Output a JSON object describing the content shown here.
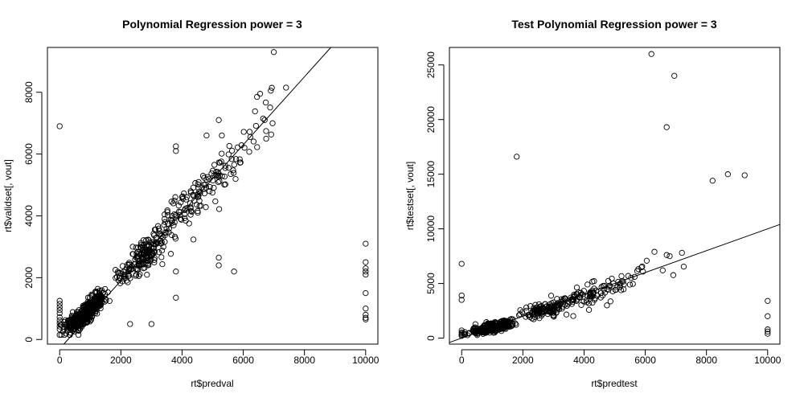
{
  "chart_data": [
    {
      "type": "scatter",
      "title": "Polynomial Regression power = 3",
      "xlabel": "rt$predval",
      "ylabel": "rt$validset[, vout]",
      "xlim": [
        -400,
        10400
      ],
      "ylim": [
        -150,
        9450
      ],
      "xticks": [
        0,
        2000,
        4000,
        6000,
        8000,
        10000
      ],
      "yticks": [
        0,
        2000,
        4000,
        6000,
        8000
      ],
      "grid": false,
      "fit_line": {
        "intercept": -300,
        "slope": 1.1
      },
      "clusters": [
        {
          "cx": 800,
          "cy": 800,
          "sx": 300,
          "sy": 280,
          "n": 260,
          "corr": 0.75
        },
        {
          "cx": 1200,
          "cy": 1250,
          "sx": 180,
          "sy": 220,
          "n": 80,
          "corr": 0.6
        },
        {
          "cx": 450,
          "cy": 500,
          "sx": 180,
          "sy": 170,
          "n": 60,
          "corr": 0.4
        },
        {
          "cx": 2850,
          "cy": 2750,
          "sx": 280,
          "sy": 260,
          "n": 130,
          "corr": 0.4
        },
        {
          "cx": 2150,
          "cy": 2100,
          "sx": 180,
          "sy": 150,
          "n": 35,
          "corr": 0.3
        },
        {
          "cx": 3700,
          "cy": 3900,
          "sx": 400,
          "sy": 450,
          "n": 60,
          "corr": 0.7
        },
        {
          "cx": 4600,
          "cy": 4700,
          "sx": 450,
          "sy": 500,
          "n": 70,
          "corr": 0.75
        },
        {
          "cx": 5500,
          "cy": 5600,
          "sx": 500,
          "sy": 550,
          "n": 25,
          "corr": 0.7
        },
        {
          "cx": 6600,
          "cy": 7000,
          "sx": 450,
          "sy": 550,
          "n": 14,
          "corr": 0.7
        }
      ],
      "points": [
        [
          0,
          6900
        ],
        [
          0,
          1250
        ],
        [
          0,
          1150
        ],
        [
          0,
          1050
        ],
        [
          0,
          950
        ],
        [
          0,
          850
        ],
        [
          0,
          720
        ],
        [
          0,
          620
        ],
        [
          0,
          520
        ],
        [
          0,
          420
        ],
        [
          0,
          330
        ],
        [
          10000,
          3100
        ],
        [
          10000,
          2500
        ],
        [
          10000,
          2300
        ],
        [
          10000,
          2200
        ],
        [
          10000,
          2100
        ],
        [
          10000,
          1500
        ],
        [
          10000,
          1000
        ],
        [
          10000,
          800
        ],
        [
          10000,
          700
        ],
        [
          10000,
          650
        ],
        [
          7000,
          9300
        ],
        [
          7400,
          8150
        ],
        [
          6900,
          8050
        ],
        [
          6550,
          7950
        ],
        [
          6450,
          7850
        ],
        [
          6700,
          7100
        ],
        [
          6650,
          7150
        ],
        [
          5200,
          2650
        ],
        [
          5200,
          2400
        ],
        [
          5700,
          2200
        ],
        [
          3800,
          1350
        ],
        [
          3000,
          500
        ],
        [
          2300,
          500
        ],
        [
          3800,
          2200
        ],
        [
          4800,
          6600
        ],
        [
          3800,
          6250
        ],
        [
          3800,
          6100
        ],
        [
          5200,
          7100
        ],
        [
          5300,
          6600
        ]
      ]
    },
    {
      "type": "scatter",
      "title": "Test Polynomial Regression power = 3",
      "xlabel": "rt$predtest",
      "ylabel": "rt$testset[, vout]",
      "xlim": [
        -400,
        10400
      ],
      "ylim": [
        -550,
        26600
      ],
      "xticks": [
        0,
        2000,
        4000,
        6000,
        8000,
        10000
      ],
      "yticks": [
        0,
        5000,
        10000,
        15000,
        20000,
        25000
      ],
      "grid": false,
      "fit_line": {
        "intercept": 0,
        "slope": 1.0
      },
      "clusters": [
        {
          "cx": 900,
          "cy": 900,
          "sx": 350,
          "sy": 280,
          "n": 220,
          "corr": 0.7
        },
        {
          "cx": 1300,
          "cy": 1150,
          "sx": 250,
          "sy": 250,
          "n": 70,
          "corr": 0.6
        },
        {
          "cx": 2700,
          "cy": 2600,
          "sx": 350,
          "sy": 380,
          "n": 120,
          "corr": 0.5
        },
        {
          "cx": 3900,
          "cy": 3700,
          "sx": 400,
          "sy": 500,
          "n": 55,
          "corr": 0.5
        },
        {
          "cx": 4800,
          "cy": 4500,
          "sx": 450,
          "sy": 600,
          "n": 40,
          "corr": 0.5
        },
        {
          "cx": 6200,
          "cy": 6200,
          "sx": 600,
          "sy": 700,
          "n": 15,
          "corr": 0.6
        }
      ],
      "points": [
        [
          0,
          6800
        ],
        [
          0,
          3900
        ],
        [
          0,
          3500
        ],
        [
          0,
          700
        ],
        [
          0,
          500
        ],
        [
          0,
          400
        ],
        [
          0,
          300
        ],
        [
          0,
          200
        ],
        [
          10000,
          3400
        ],
        [
          10000,
          2000
        ],
        [
          10000,
          800
        ],
        [
          10000,
          600
        ],
        [
          10000,
          400
        ],
        [
          6200,
          26000
        ],
        [
          6950,
          24000
        ],
        [
          6700,
          19300
        ],
        [
          1800,
          16600
        ],
        [
          8700,
          15000
        ],
        [
          9250,
          14900
        ],
        [
          8200,
          14400
        ],
        [
          6300,
          7900
        ],
        [
          6700,
          7600
        ],
        [
          6800,
          7500
        ],
        [
          7200,
          7800
        ]
      ]
    }
  ]
}
